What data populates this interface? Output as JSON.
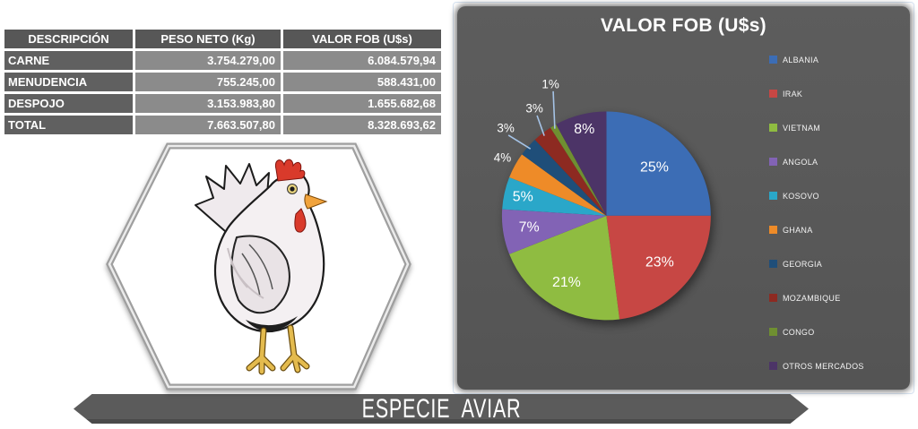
{
  "table": {
    "headers": [
      "DESCRIPCIÓN",
      "PESO NETO (Kg)",
      "VALOR FOB (U$s)"
    ],
    "rows": [
      [
        "CARNE",
        "3.754.279,00",
        "6.084.579,94"
      ],
      [
        "MENUDENCIA",
        "755.245,00",
        "588.431,00"
      ],
      [
        "DESPOJO",
        "3.153.983,80",
        "1.655.682,68"
      ],
      [
        "TOTAL",
        "7.663.507,80",
        "8.328.693,62"
      ]
    ]
  },
  "chart_data": {
    "type": "pie",
    "title": "VALOR FOB (U$s)",
    "legend_position": "right",
    "series": [
      {
        "name": "ALBANIA",
        "value": 25,
        "label": "25%",
        "color": "#3C6DB5"
      },
      {
        "name": "IRAK",
        "value": 23,
        "label": "23%",
        "color": "#C74744"
      },
      {
        "name": "VIETNAM",
        "value": 21,
        "label": "21%",
        "color": "#8FBC41"
      },
      {
        "name": "ANGOLA",
        "value": 7,
        "label": "7%",
        "color": "#8263B5"
      },
      {
        "name": "KOSOVO",
        "value": 5,
        "label": "5%",
        "color": "#2AA7C9"
      },
      {
        "name": "GHANA",
        "value": 4,
        "label": "4%",
        "color": "#EE8B28"
      },
      {
        "name": "GEORGIA",
        "value": 3,
        "label": "3%",
        "color": "#1F4E79"
      },
      {
        "name": "MOZAMBIQUE",
        "value": 3,
        "label": "3%",
        "color": "#8D2A21"
      },
      {
        "name": "CONGO",
        "value": 1,
        "label": "1%",
        "color": "#6F8F31"
      },
      {
        "name": "OTROS MERCADOS",
        "value": 8,
        "label": "8%",
        "color": "#4C3467"
      }
    ]
  },
  "banner": {
    "text": "ESPECIE  AVIAR"
  },
  "icons": {
    "badge": "chicken-illustration"
  },
  "colors": {
    "chart_panel_bg": "#595959",
    "banner_bg": "#5B5B5B",
    "table_header_bg": "#575757",
    "table_row_label_bg": "#606060",
    "table_value_bg": "#8B8B8B",
    "leader_line": "#A5C3E6",
    "pie_label_text": "#FFFFFF"
  }
}
